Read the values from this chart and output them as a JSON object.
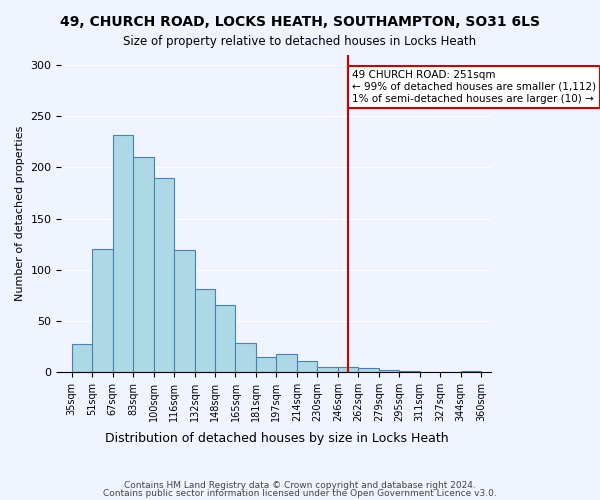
{
  "title": "49, CHURCH ROAD, LOCKS HEATH, SOUTHAMPTON, SO31 6LS",
  "subtitle": "Size of property relative to detached houses in Locks Heath",
  "xlabel": "Distribution of detached houses by size in Locks Heath",
  "ylabel": "Number of detached properties",
  "bin_labels": [
    "35sqm",
    "51sqm",
    "67sqm",
    "83sqm",
    "100sqm",
    "116sqm",
    "132sqm",
    "148sqm",
    "165sqm",
    "181sqm",
    "197sqm",
    "214sqm",
    "230sqm",
    "246sqm",
    "262sqm",
    "279sqm",
    "295sqm",
    "311sqm",
    "327sqm",
    "344sqm",
    "360sqm"
  ],
  "bar_heights": [
    27,
    120,
    232,
    210,
    190,
    119,
    81,
    65,
    28,
    14,
    17,
    11,
    5,
    5,
    4,
    2,
    1,
    0,
    0,
    1
  ],
  "bar_color": "#add8e6",
  "bar_edge_color": "#4682b4",
  "vline_x_index": 13.5,
  "vline_color": "#cc0000",
  "annotation_text": "49 CHURCH ROAD: 251sqm\n← 99% of detached houses are smaller (1,112)\n1% of semi-detached houses are larger (10) →",
  "annotation_box_edge_color": "#cc0000",
  "ylim": [
    0,
    310
  ],
  "yticks": [
    0,
    50,
    100,
    150,
    200,
    250,
    300
  ],
  "footnote1": "Contains HM Land Registry data © Crown copyright and database right 2024.",
  "footnote2": "Contains public sector information licensed under the Open Government Licence v3.0.",
  "bg_color": "#f0f4ff",
  "plot_bg_color": "#f0f4ff"
}
